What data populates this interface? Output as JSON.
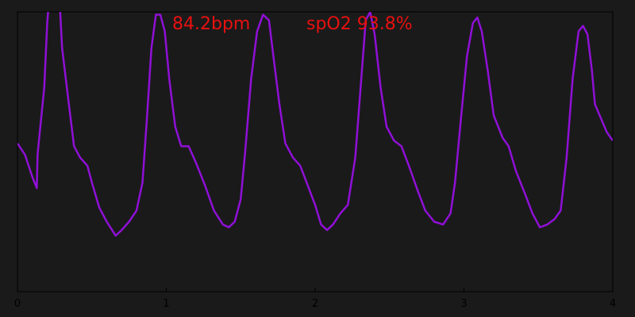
{
  "chart_data": {
    "type": "line",
    "annotations": [
      "84.2bpm",
      "spO2 93.8%"
    ],
    "annotation_color": "#e81010",
    "x": [
      0,
      0.05,
      0.1,
      0.13,
      0.135,
      0.18,
      0.2,
      0.22,
      0.28,
      0.3,
      0.35,
      0.38,
      0.42,
      0.47,
      0.5,
      0.55,
      0.6,
      0.66,
      0.7,
      0.75,
      0.8,
      0.84,
      0.87,
      0.9,
      0.93,
      0.96,
      0.99,
      1.02,
      1.06,
      1.1,
      1.15,
      1.2,
      1.26,
      1.32,
      1.38,
      1.42,
      1.46,
      1.5,
      1.53,
      1.57,
      1.61,
      1.65,
      1.69,
      1.72,
      1.76,
      1.8,
      1.85,
      1.9,
      1.95,
      2.0,
      2.04,
      2.08,
      2.12,
      2.17,
      2.22,
      2.27,
      2.31,
      2.34,
      2.37,
      2.4,
      2.44,
      2.48,
      2.53,
      2.58,
      2.63,
      2.69,
      2.74,
      2.8,
      2.86,
      2.91,
      2.94,
      2.98,
      3.02,
      3.06,
      3.09,
      3.12,
      3.16,
      3.2,
      3.26,
      3.3,
      3.35,
      3.41,
      3.46,
      3.51,
      3.56,
      3.61,
      3.65,
      3.69,
      3.73,
      3.77,
      3.8,
      3.83,
      3.86,
      3.88,
      3.92,
      3.96,
      4.0
    ],
    "series": [
      {
        "color": "#8f10d6",
        "values": [
          0.53,
          0.49,
          0.41,
          0.37,
          0.49,
          0.73,
          0.96,
          1.1,
          1.07,
          0.87,
          0.65,
          0.52,
          0.48,
          0.45,
          0.39,
          0.3,
          0.25,
          0.2,
          0.22,
          0.25,
          0.29,
          0.39,
          0.62,
          0.87,
          0.99,
          0.99,
          0.93,
          0.76,
          0.59,
          0.52,
          0.52,
          0.46,
          0.38,
          0.29,
          0.24,
          0.23,
          0.25,
          0.33,
          0.5,
          0.76,
          0.93,
          0.99,
          0.97,
          0.84,
          0.67,
          0.53,
          0.48,
          0.45,
          0.38,
          0.31,
          0.24,
          0.22,
          0.24,
          0.28,
          0.31,
          0.48,
          0.76,
          0.97,
          1.0,
          0.92,
          0.73,
          0.59,
          0.54,
          0.52,
          0.45,
          0.36,
          0.29,
          0.25,
          0.24,
          0.28,
          0.39,
          0.62,
          0.84,
          0.96,
          0.98,
          0.93,
          0.79,
          0.63,
          0.55,
          0.52,
          0.43,
          0.35,
          0.28,
          0.23,
          0.24,
          0.26,
          0.29,
          0.48,
          0.76,
          0.93,
          0.95,
          0.92,
          0.79,
          0.67,
          0.62,
          0.57,
          0.54
        ]
      }
    ],
    "xlim": [
      0,
      4
    ],
    "xticks": [
      0,
      1,
      2,
      3,
      4
    ],
    "ylim": [
      0,
      1
    ]
  }
}
